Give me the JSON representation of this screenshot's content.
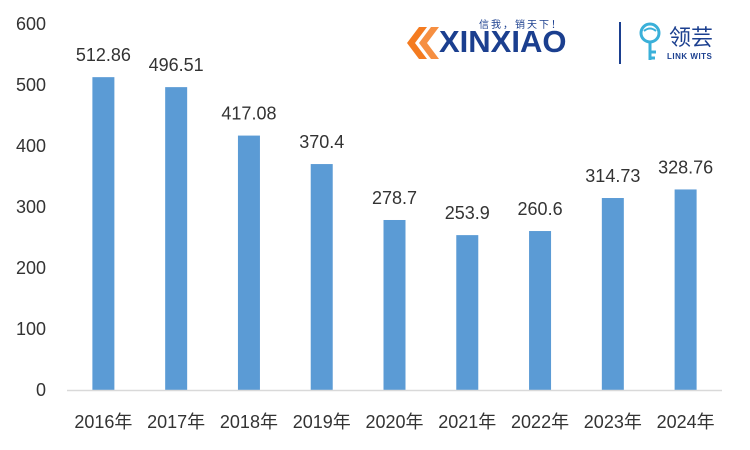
{
  "chart_data": {
    "type": "bar",
    "categories": [
      "2016年",
      "2017年",
      "2018年",
      "2019年",
      "2020年",
      "2021年",
      "2022年",
      "2023年",
      "2024年"
    ],
    "values": [
      512.86,
      496.51,
      417.08,
      370.4,
      278.7,
      253.9,
      260.6,
      314.73,
      328.76
    ],
    "value_labels": [
      "512.86",
      "496.51",
      "417.08",
      "370.4",
      "278.7",
      "253.9",
      "260.6",
      "314.73",
      "328.76"
    ],
    "yticks": [
      0,
      100,
      200,
      300,
      400,
      500,
      600
    ],
    "ylim": [
      0,
      600
    ],
    "grid": false,
    "bar_color": "#5b9bd5",
    "axis_color": "#d9d9d9"
  },
  "logo": {
    "brand": "XINXIAO",
    "tagline": "信我，销天下！",
    "brand2": "领芸",
    "brand2_en": "LINK WITS",
    "colors": {
      "orange": "#f47b20",
      "blue": "#1b3f8f",
      "teal": "#3ab0d9"
    }
  }
}
